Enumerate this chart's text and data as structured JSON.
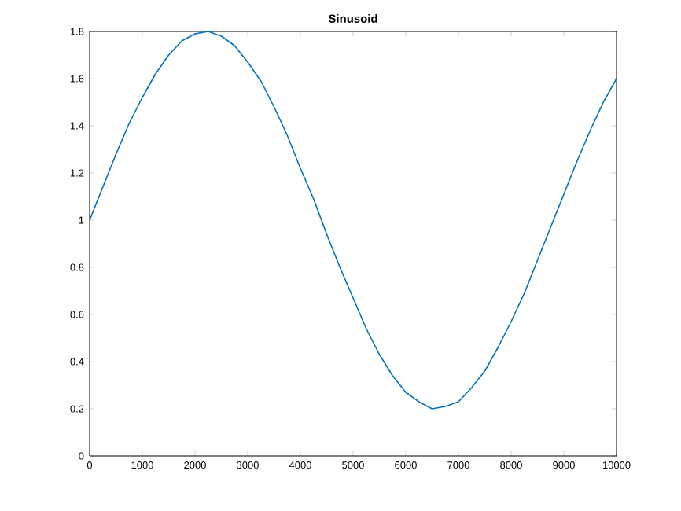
{
  "chart_data": {
    "type": "line",
    "title": "Sinusoid",
    "x": [
      0,
      250,
      500,
      750,
      1000,
      1250,
      1500,
      1750,
      2000,
      2250,
      2500,
      2750,
      3000,
      3250,
      3500,
      3750,
      4000,
      4250,
      4500,
      4750,
      5000,
      5250,
      5500,
      5750,
      6000,
      6250,
      6500,
      6750,
      7000,
      7250,
      7500,
      7750,
      8000,
      8250,
      8500,
      8750,
      9000,
      9250,
      9500,
      9750,
      10000
    ],
    "values": [
      1.0,
      1.14,
      1.28,
      1.41,
      1.52,
      1.62,
      1.7,
      1.76,
      1.79,
      1.8,
      1.78,
      1.74,
      1.67,
      1.59,
      1.48,
      1.36,
      1.22,
      1.09,
      0.94,
      0.8,
      0.67,
      0.54,
      0.43,
      0.34,
      0.27,
      0.23,
      0.2,
      0.21,
      0.23,
      0.29,
      0.36,
      0.46,
      0.57,
      0.69,
      0.83,
      0.97,
      1.11,
      1.25,
      1.38,
      1.5,
      1.6
    ],
    "color": "#0072bd",
    "xlim": [
      0,
      10000
    ],
    "xticks": [
      0,
      1000,
      2000,
      3000,
      4000,
      5000,
      6000,
      7000,
      8000,
      9000,
      10000
    ],
    "ylim": [
      0,
      1.8
    ],
    "yticks": [
      0,
      0.2,
      0.4,
      0.6,
      0.8,
      1,
      1.2,
      1.4,
      1.6,
      1.8
    ]
  }
}
